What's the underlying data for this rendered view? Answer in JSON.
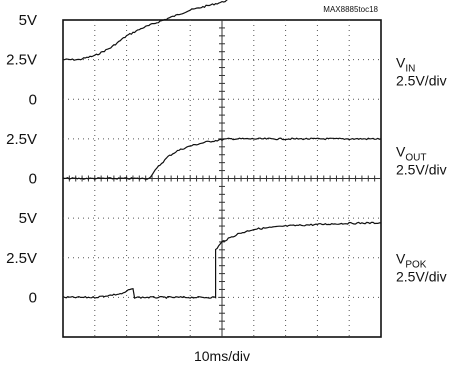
{
  "chart_data": {
    "type": "line",
    "figure_id": "MAX8885toc18",
    "xlabel": "10ms/div",
    "x_divisions": 10,
    "y_divisions": 8,
    "grid": true,
    "y_tick_labels": [
      "5V",
      "2.5V",
      "0",
      "2.5V",
      "0",
      "5V",
      "2.5V",
      "0"
    ],
    "channels": [
      {
        "name_main": "V",
        "name_sub": "IN",
        "scale": "2.5V/div",
        "x": [
          0.0,
          0.5,
          1.0,
          1.5,
          2.0,
          2.5,
          3.0,
          3.5,
          4.0,
          4.5,
          5.0,
          5.5,
          6.0,
          6.5,
          7.0,
          7.5,
          8.0,
          8.5,
          9.0,
          9.5,
          10.0
        ],
        "y": [
          0.0,
          0.0,
          0.1,
          0.3,
          0.6,
          0.8,
          0.95,
          1.1,
          1.25,
          1.35,
          1.45,
          1.6,
          1.7,
          1.78,
          1.85,
          1.89,
          1.92,
          1.95,
          1.96,
          1.97,
          1.97
        ]
      },
      {
        "name_main": "V",
        "name_sub": "OUT",
        "scale": "2.5V/div",
        "x": [
          0.0,
          1.0,
          2.0,
          2.7,
          3.0,
          3.3,
          3.6,
          4.0,
          4.5,
          5.0,
          5.2,
          6.0,
          7.0,
          8.0,
          9.0,
          10.0
        ],
        "y": [
          0.0,
          0.0,
          0.0,
          0.0,
          0.3,
          0.55,
          0.7,
          0.82,
          0.92,
          0.98,
          1.0,
          1.0,
          1.0,
          1.0,
          1.0,
          1.0
        ]
      },
      {
        "name_main": "V",
        "name_sub": "POK",
        "scale": "2.5V/div",
        "x": [
          0.0,
          1.0,
          1.9,
          2.1,
          2.2,
          2.25,
          3.0,
          4.0,
          4.8,
          4.8,
          5.0,
          5.5,
          6.0,
          7.0,
          8.0,
          9.0,
          10.0
        ],
        "y": [
          0.0,
          0.0,
          0.1,
          0.2,
          0.2,
          0.0,
          0.0,
          0.0,
          0.0,
          1.2,
          1.4,
          1.6,
          1.72,
          1.8,
          1.84,
          1.87,
          1.88
        ]
      }
    ]
  }
}
